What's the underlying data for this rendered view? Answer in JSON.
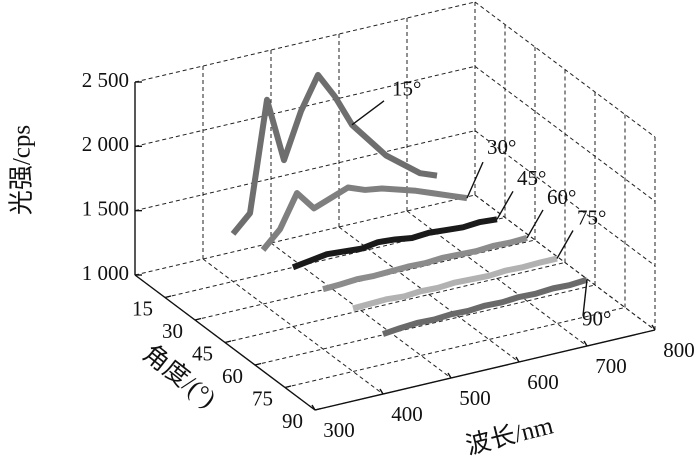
{
  "chart_data": {
    "type": "waterfall",
    "zlabel": "光强/cps",
    "ylabel": "角度/(°)",
    "xlabel": "波长/nm",
    "x": [
      400,
      425,
      450,
      475,
      500,
      525,
      550,
      575,
      600,
      625,
      650,
      675,
      700
    ],
    "xlim": [
      300,
      800
    ],
    "xticks": [
      300,
      400,
      500,
      600,
      700,
      800
    ],
    "ylim": [
      0,
      90
    ],
    "yticks": [
      15,
      30,
      45,
      60,
      75,
      90
    ],
    "zlim": [
      1000,
      2500
    ],
    "zticks": [
      {
        "value": 1000,
        "label": "1 000"
      },
      {
        "value": 1500,
        "label": "1 500"
      },
      {
        "value": 2000,
        "label": "2 000"
      },
      {
        "value": 2500,
        "label": "2 500"
      }
    ],
    "grid": true,
    "series": [
      {
        "name": "15°",
        "angle": 15,
        "color": "#6e6e6e",
        "values": [
          1370,
          1500,
          2350,
          1850,
          2200,
          2450,
          2250,
          2000,
          1850,
          1700,
          1600,
          1500,
          1450
        ]
      },
      {
        "name": "30°",
        "angle": 30,
        "color": "#7f7f7f",
        "values": [
          1420,
          1550,
          1800,
          1650,
          1700,
          1750,
          1700,
          1680,
          1640,
          1600,
          1550,
          1500,
          1450
        ]
      },
      {
        "name": "45°",
        "angle": 45,
        "color": "#1a1a1a",
        "values": [
          1460,
          1480,
          1500,
          1490,
          1480,
          1500,
          1490,
          1470,
          1480,
          1470,
          1460,
          1470,
          1460
        ]
      },
      {
        "name": "60°",
        "angle": 60,
        "color": "#8c8c8c",
        "values": [
          1465,
          1470,
          1480,
          1475,
          1480,
          1485,
          1480,
          1490,
          1485,
          1480,
          1490,
          1485,
          1490
        ]
      },
      {
        "name": "75°",
        "angle": 75,
        "color": "#b2b2b2",
        "values": [
          1490,
          1495,
          1500,
          1490,
          1500,
          1495,
          1505,
          1500,
          1495,
          1505,
          1500,
          1505,
          1505
        ]
      },
      {
        "name": "90°",
        "angle": 90,
        "color": "#6a6a6a",
        "values": [
          1466,
          1480,
          1490,
          1485,
          1495,
          1490,
          1500,
          1495,
          1505,
          1500,
          1510,
          1505,
          1515
        ]
      }
    ]
  }
}
